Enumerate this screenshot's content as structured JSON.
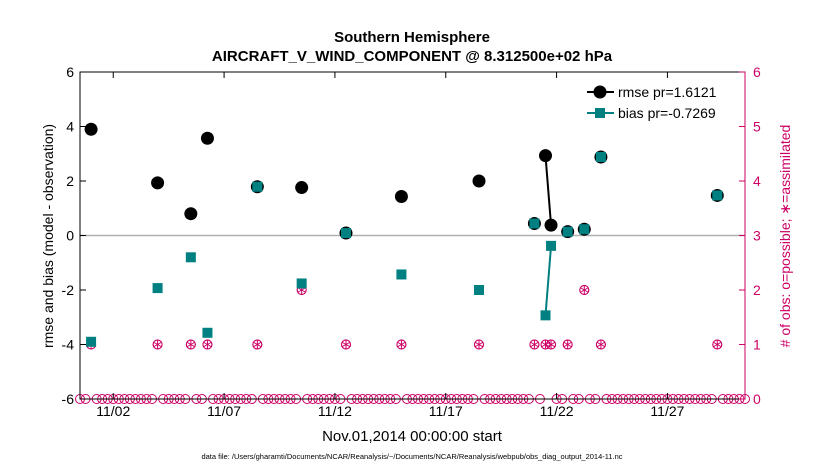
{
  "chart_data": {
    "type": "line",
    "title": "Southern Hemisphere",
    "subtitle": "AIRCRAFT_V_WIND_COMPONENT @ 8.312500e+02 hPa",
    "xlabel": "Nov.01,2014 00:00:00 start",
    "ylabel_left": "rmse and bias (model - observation)",
    "ylabel_right": "# of obs: o=possible; ∗=assimilated",
    "footer": "data file: /Users/gharamti/Documents/NCAR/Reanalysis/~/Documents/NCAR/Reanalysis/webpub/obs_diag_output_2014-11.nc",
    "xlim": [
      0.5,
      30.5
    ],
    "ylim_left": [
      -6,
      6
    ],
    "ylim_right": [
      0,
      6
    ],
    "x_ticks": [
      2,
      7,
      12,
      17,
      22,
      27
    ],
    "x_tick_labels": [
      "11/02",
      "11/07",
      "11/12",
      "11/17",
      "11/22",
      "11/27"
    ],
    "y_ticks_left": [
      -6,
      -4,
      -2,
      0,
      2,
      4,
      6
    ],
    "y_tick_labels_left": [
      "-6",
      "-4",
      "-2",
      "0",
      "2",
      "4",
      "6"
    ],
    "y_ticks_right": [
      0,
      1,
      2,
      3,
      4,
      5,
      6
    ],
    "y_tick_labels_right": [
      "0",
      "1",
      "2",
      "3",
      "4",
      "5",
      "6"
    ],
    "legend": {
      "placement": "top-right",
      "entries": [
        {
          "label": "rmse pr=1.6121",
          "color": "#000000",
          "marker": "circle"
        },
        {
          "label": "bias pr=-0.7269",
          "color": "#008080",
          "marker": "square"
        }
      ]
    },
    "colors": {
      "rmse": "#000000",
      "bias": "#008080",
      "obs": "#cc0066",
      "zero_line": "#b0b0b0"
    },
    "series": [
      {
        "name": "rmse",
        "x": [
          1.0,
          4.0,
          5.5,
          6.25,
          8.5,
          10.5,
          12.5,
          15.0,
          18.5,
          21.0,
          21.5,
          21.75,
          22.5,
          23.25,
          24.0,
          29.25
        ],
        "values": [
          3.9,
          1.93,
          0.8,
          3.57,
          1.79,
          1.76,
          0.09,
          1.43,
          2.0,
          0.44,
          2.93,
          0.38,
          0.14,
          0.23,
          2.88,
          1.47
        ]
      },
      {
        "name": "bias",
        "x": [
          1.0,
          4.0,
          5.5,
          6.25,
          8.5,
          10.5,
          12.5,
          15.0,
          18.5,
          21.0,
          21.5,
          21.75,
          22.5,
          23.25,
          24.0,
          29.25
        ],
        "values": [
          -3.9,
          -1.93,
          -0.8,
          -3.57,
          1.79,
          -1.76,
          0.09,
          -1.43,
          -2.0,
          0.44,
          -2.93,
          -0.38,
          0.14,
          0.23,
          2.88,
          1.47
        ]
      }
    ],
    "connected_segments": [
      [
        10,
        11
      ]
    ],
    "obs_possible": {
      "x": [
        1.0,
        4.0,
        5.5,
        6.25,
        8.5,
        10.5,
        12.5,
        15.0,
        18.5,
        21.0,
        21.5,
        21.75,
        22.5,
        23.25,
        24.0,
        29.25
      ],
      "values": [
        1,
        1,
        1,
        1,
        1,
        2,
        1,
        1,
        1,
        1,
        1,
        1,
        1,
        2,
        1,
        1
      ]
    },
    "obs_assimilated": {
      "x": [
        1.0,
        4.0,
        5.5,
        6.25,
        8.5,
        10.5,
        12.5,
        15.0,
        18.5,
        21.0,
        21.5,
        21.75,
        22.5,
        23.25,
        24.0,
        29.25
      ],
      "values": [
        1,
        1,
        1,
        1,
        1,
        2,
        1,
        1,
        1,
        1,
        1,
        1,
        1,
        2,
        1,
        1
      ]
    },
    "zero_obs_spacing_days": 0.25
  }
}
